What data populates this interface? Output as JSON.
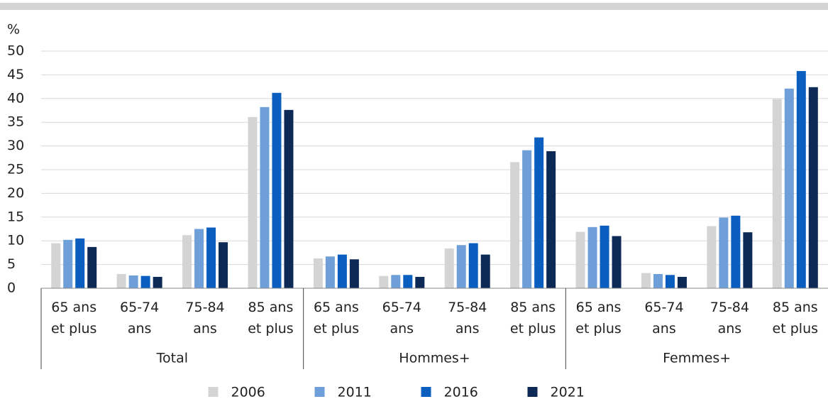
{
  "chart_data": {
    "type": "bar",
    "y_unit": "%",
    "groups": [
      "Total",
      "Hommes+",
      "Femmes+"
    ],
    "categories": [
      "65 ans et plus",
      "65-74 ans",
      "75-84 ans",
      "85 ans et plus",
      "65 ans et plus",
      "65-74 ans",
      "75-84 ans",
      "85 ans et plus",
      "65 ans et plus",
      "65-74 ans",
      "75-84 ans",
      "85 ans et plus"
    ],
    "series": [
      {
        "name": "2006",
        "color": "#d4d4d4",
        "values": [
          9.5,
          3.0,
          11.2,
          36.1,
          6.3,
          2.6,
          8.4,
          26.6,
          11.9,
          3.2,
          13.1,
          39.9
        ]
      },
      {
        "name": "2011",
        "color": "#6f9fd8",
        "values": [
          10.2,
          2.7,
          12.5,
          38.2,
          6.7,
          2.8,
          9.1,
          29.1,
          12.9,
          3.0,
          14.9,
          42.1
        ]
      },
      {
        "name": "2016",
        "color": "#0a5ec0",
        "values": [
          10.5,
          2.6,
          12.8,
          41.2,
          7.1,
          2.8,
          9.5,
          31.8,
          13.2,
          2.8,
          15.3,
          45.8
        ]
      },
      {
        "name": "2021",
        "color": "#0d2a57",
        "values": [
          8.7,
          2.4,
          9.7,
          37.6,
          6.1,
          2.4,
          7.1,
          28.9,
          11.0,
          2.4,
          11.8,
          42.4
        ]
      }
    ],
    "ylim": [
      0,
      50
    ],
    "yticks": [
      0,
      5,
      10,
      15,
      20,
      25,
      30,
      35,
      40,
      45,
      50
    ],
    "grid": true
  }
}
